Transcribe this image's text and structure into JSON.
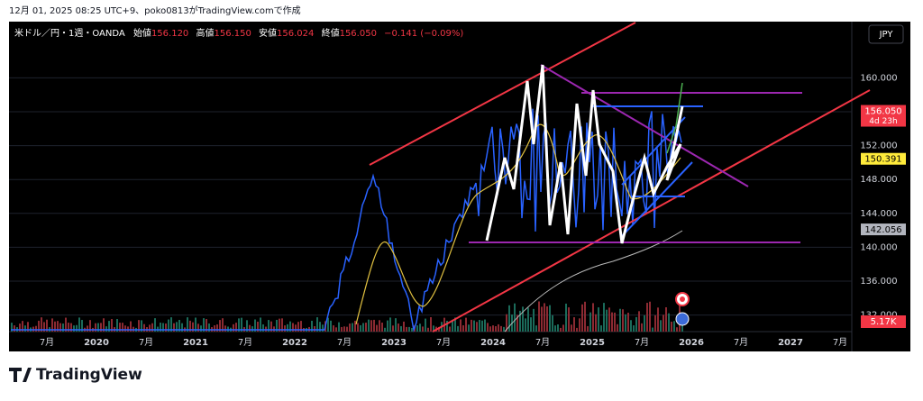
{
  "header": {
    "caption": "12月 01, 2025 08:25 UTC+9、poko0813がTradingView.comで作成"
  },
  "symbol": {
    "name": "米ドル／円・1週・OANDA",
    "open_label": "始値",
    "open": "156.120",
    "high_label": "高値",
    "high": "156.150",
    "low_label": "安値",
    "low": "156.024",
    "close_label": "終値",
    "close": "156.050",
    "change": "−0.141 (−0.09%)"
  },
  "currency_button": "JPY",
  "price_axis": {
    "ticks": [
      {
        "value": 160,
        "label": "160.000"
      },
      {
        "value": 156,
        "label": "156.000"
      },
      {
        "value": 152,
        "label": "152.000"
      },
      {
        "value": 148,
        "label": "148.000"
      },
      {
        "value": 144,
        "label": "144.000"
      },
      {
        "value": 140,
        "label": "140.000"
      },
      {
        "value": 136,
        "label": "136.000"
      },
      {
        "value": 132,
        "label": "132.000"
      }
    ],
    "badges": [
      {
        "value": 156.05,
        "label": "156.050",
        "sub": "4d 23h",
        "color": "#f23645",
        "text": "#ffffff"
      },
      {
        "value": 150.391,
        "label": "150.391",
        "color": "#ffeb3b",
        "text": "#000000"
      },
      {
        "value": 142.056,
        "label": "142.056",
        "color": "#b2b5be",
        "text": "#000000"
      }
    ],
    "volume_badge": "5.17K"
  },
  "time_axis": [
    "7月",
    "2020",
    "7月",
    "2021",
    "7月",
    "2022",
    "7月",
    "2023",
    "7月",
    "2024",
    "7月",
    "2025",
    "7月",
    "2026",
    "7月",
    "2027",
    "7月"
  ],
  "footer": {
    "brand": "TradingView"
  }
}
